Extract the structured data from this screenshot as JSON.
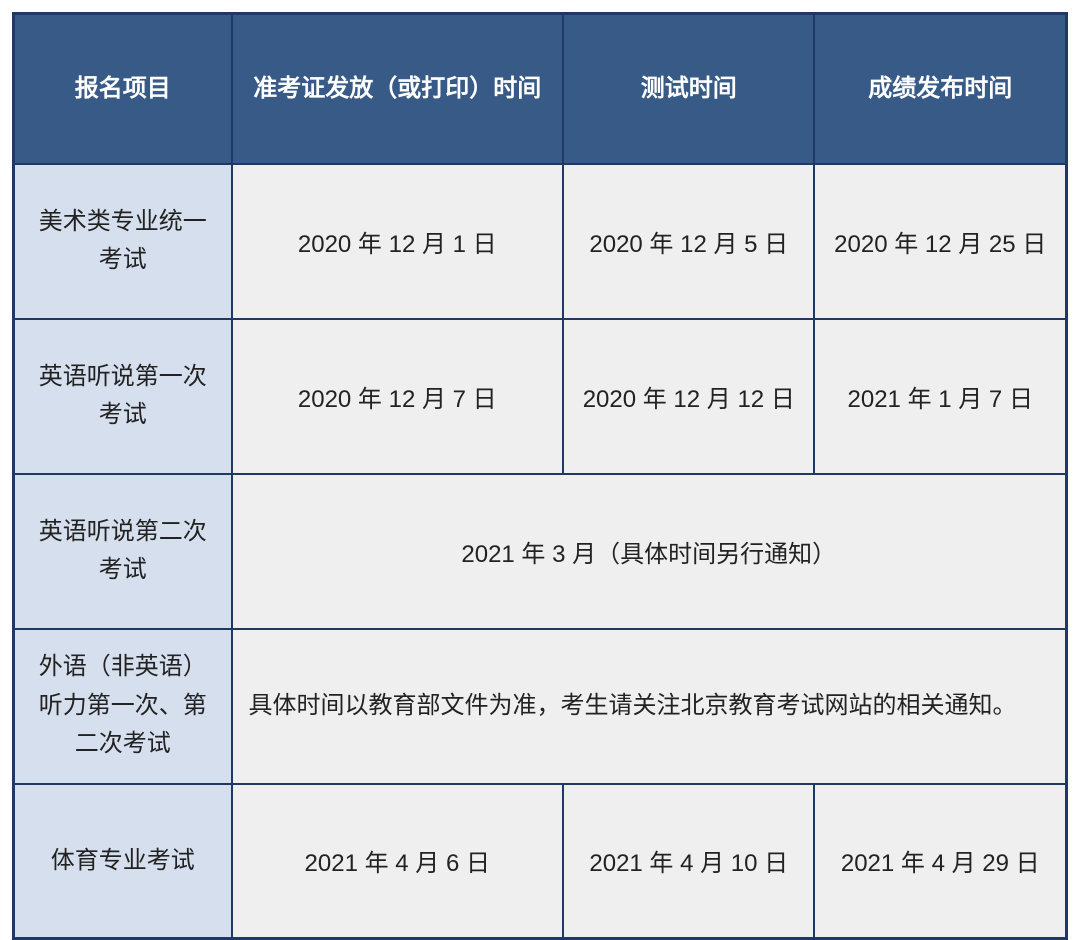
{
  "table": {
    "header_bg": "#375a87",
    "header_fg": "#ffffff",
    "label_bg": "#d6dfed",
    "data_bg": "#efefef",
    "border_color": "#1f3864",
    "columns": [
      "报名项目",
      "准考证发放（或打印）时间",
      "测试时间",
      "成绩发布时间"
    ],
    "rows": [
      {
        "label": "美术类专业统一考试",
        "cells": [
          "2020 年 12 月 1 日",
          "2020 年 12 月 5 日",
          "2020 年 12 月 25 日"
        ]
      },
      {
        "label": "英语听说第一次考试",
        "cells": [
          "2020 年 12 月 7 日",
          "2020 年 12 月 12 日",
          "2021 年 1 月 7 日"
        ]
      },
      {
        "label": "英语听说第二次考试",
        "merged": "2021 年 3 月（具体时间另行通知）",
        "merged_align": "center"
      },
      {
        "label": "外语（非英语）听力第一次、第二次考试",
        "merged": "具体时间以教育部文件为准，考生请关注北京教育考试网站的相关通知。",
        "merged_align": "left"
      },
      {
        "label": "体育专业考试",
        "cells": [
          "2021 年 4 月 6 日",
          "2021 年 4 月 10 日",
          "2021 年 4 月 29 日"
        ]
      }
    ]
  }
}
